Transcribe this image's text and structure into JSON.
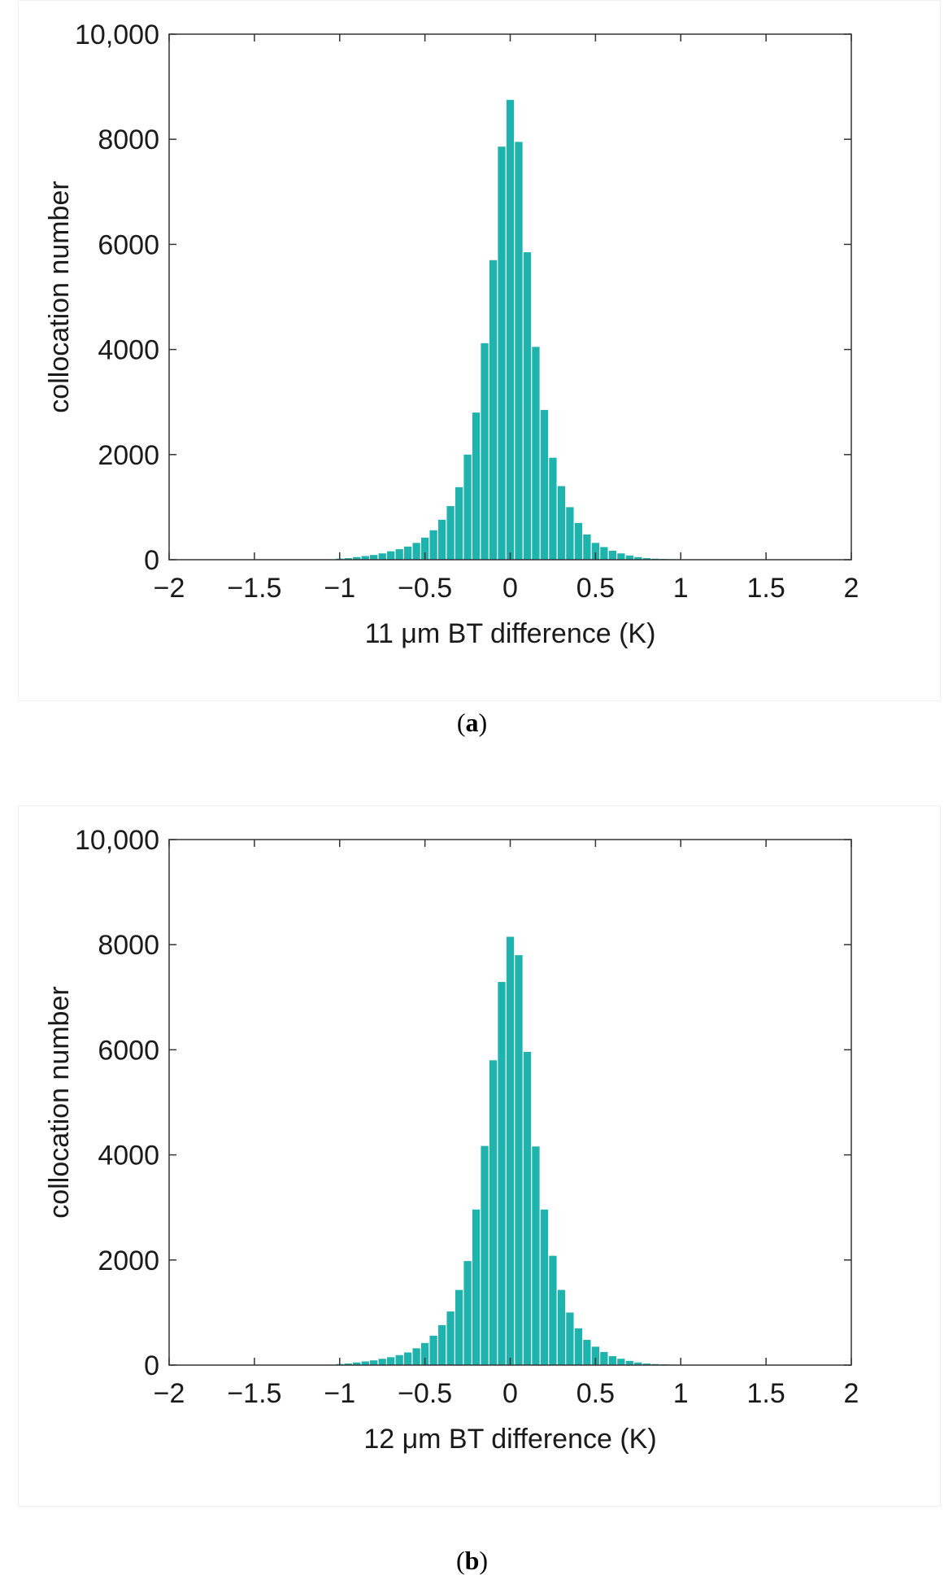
{
  "captions": [
    {
      "open": "(",
      "letter": "a",
      "close": ")"
    },
    {
      "open": "(",
      "letter": "b",
      "close": ")"
    }
  ],
  "chart_data": [
    {
      "type": "bar",
      "xlabel": "11 μm BT difference (K)",
      "ylabel": "collocation number",
      "xlim": [
        -2,
        2
      ],
      "ylim": [
        0,
        10000
      ],
      "xticks": [
        -2,
        -1.5,
        -1,
        -0.5,
        0,
        0.5,
        1,
        1.5,
        2
      ],
      "xtick_labels": [
        "−2",
        "−1.5",
        "−1",
        "−0.5",
        "0",
        "0.5",
        "1",
        "1.5",
        "2"
      ],
      "yticks": [
        0,
        2000,
        4000,
        6000,
        8000,
        10000
      ],
      "ytick_labels": [
        "0",
        "2000",
        "4000",
        "6000",
        "8000",
        "10,000"
      ],
      "bar_color": "#1fb3ad",
      "bin_width": 0.05,
      "x": [
        -1.0,
        -0.95,
        -0.9,
        -0.85,
        -0.8,
        -0.75,
        -0.7,
        -0.65,
        -0.6,
        -0.55,
        -0.5,
        -0.45,
        -0.4,
        -0.35,
        -0.3,
        -0.25,
        -0.2,
        -0.15,
        -0.1,
        -0.05,
        0.0,
        0.05,
        0.1,
        0.15,
        0.2,
        0.25,
        0.3,
        0.35,
        0.4,
        0.45,
        0.5,
        0.55,
        0.6,
        0.65,
        0.7,
        0.75,
        0.8,
        0.85,
        0.9,
        0.95,
        1.0
      ],
      "values": [
        20,
        30,
        50,
        70,
        90,
        120,
        160,
        200,
        250,
        320,
        420,
        560,
        760,
        1020,
        1380,
        2000,
        2800,
        4120,
        5700,
        7860,
        8750,
        7950,
        5850,
        4050,
        2850,
        1940,
        1400,
        1000,
        700,
        480,
        320,
        240,
        170,
        120,
        80,
        50,
        30,
        20,
        15,
        10,
        5
      ]
    },
    {
      "type": "bar",
      "xlabel": "12 μm BT difference (K)",
      "ylabel": "collocation number",
      "xlim": [
        -2,
        2
      ],
      "ylim": [
        0,
        10000
      ],
      "xticks": [
        -2,
        -1.5,
        -1,
        -0.5,
        0,
        0.5,
        1,
        1.5,
        2
      ],
      "xtick_labels": [
        "−2",
        "−1.5",
        "−1",
        "−0.5",
        "0",
        "0.5",
        "1",
        "1.5",
        "2"
      ],
      "yticks": [
        0,
        2000,
        4000,
        6000,
        8000,
        10000
      ],
      "ytick_labels": [
        "0",
        "2000",
        "4000",
        "6000",
        "8000",
        "10,000"
      ],
      "bar_color": "#1fb3ad",
      "bin_width": 0.05,
      "x": [
        -1.0,
        -0.95,
        -0.9,
        -0.85,
        -0.8,
        -0.75,
        -0.7,
        -0.65,
        -0.6,
        -0.55,
        -0.5,
        -0.45,
        -0.4,
        -0.35,
        -0.3,
        -0.25,
        -0.2,
        -0.15,
        -0.1,
        -0.05,
        0.0,
        0.05,
        0.1,
        0.15,
        0.2,
        0.25,
        0.3,
        0.35,
        0.4,
        0.45,
        0.5,
        0.55,
        0.6,
        0.65,
        0.7,
        0.75,
        0.8,
        0.85,
        0.9,
        0.95,
        1.0
      ],
      "values": [
        20,
        30,
        50,
        70,
        90,
        120,
        150,
        190,
        240,
        320,
        420,
        560,
        760,
        1020,
        1430,
        1980,
        2960,
        4170,
        5800,
        7290,
        8150,
        7800,
        5960,
        4160,
        2960,
        2080,
        1430,
        1000,
        700,
        480,
        350,
        250,
        170,
        120,
        80,
        50,
        30,
        20,
        15,
        10,
        5
      ]
    }
  ]
}
